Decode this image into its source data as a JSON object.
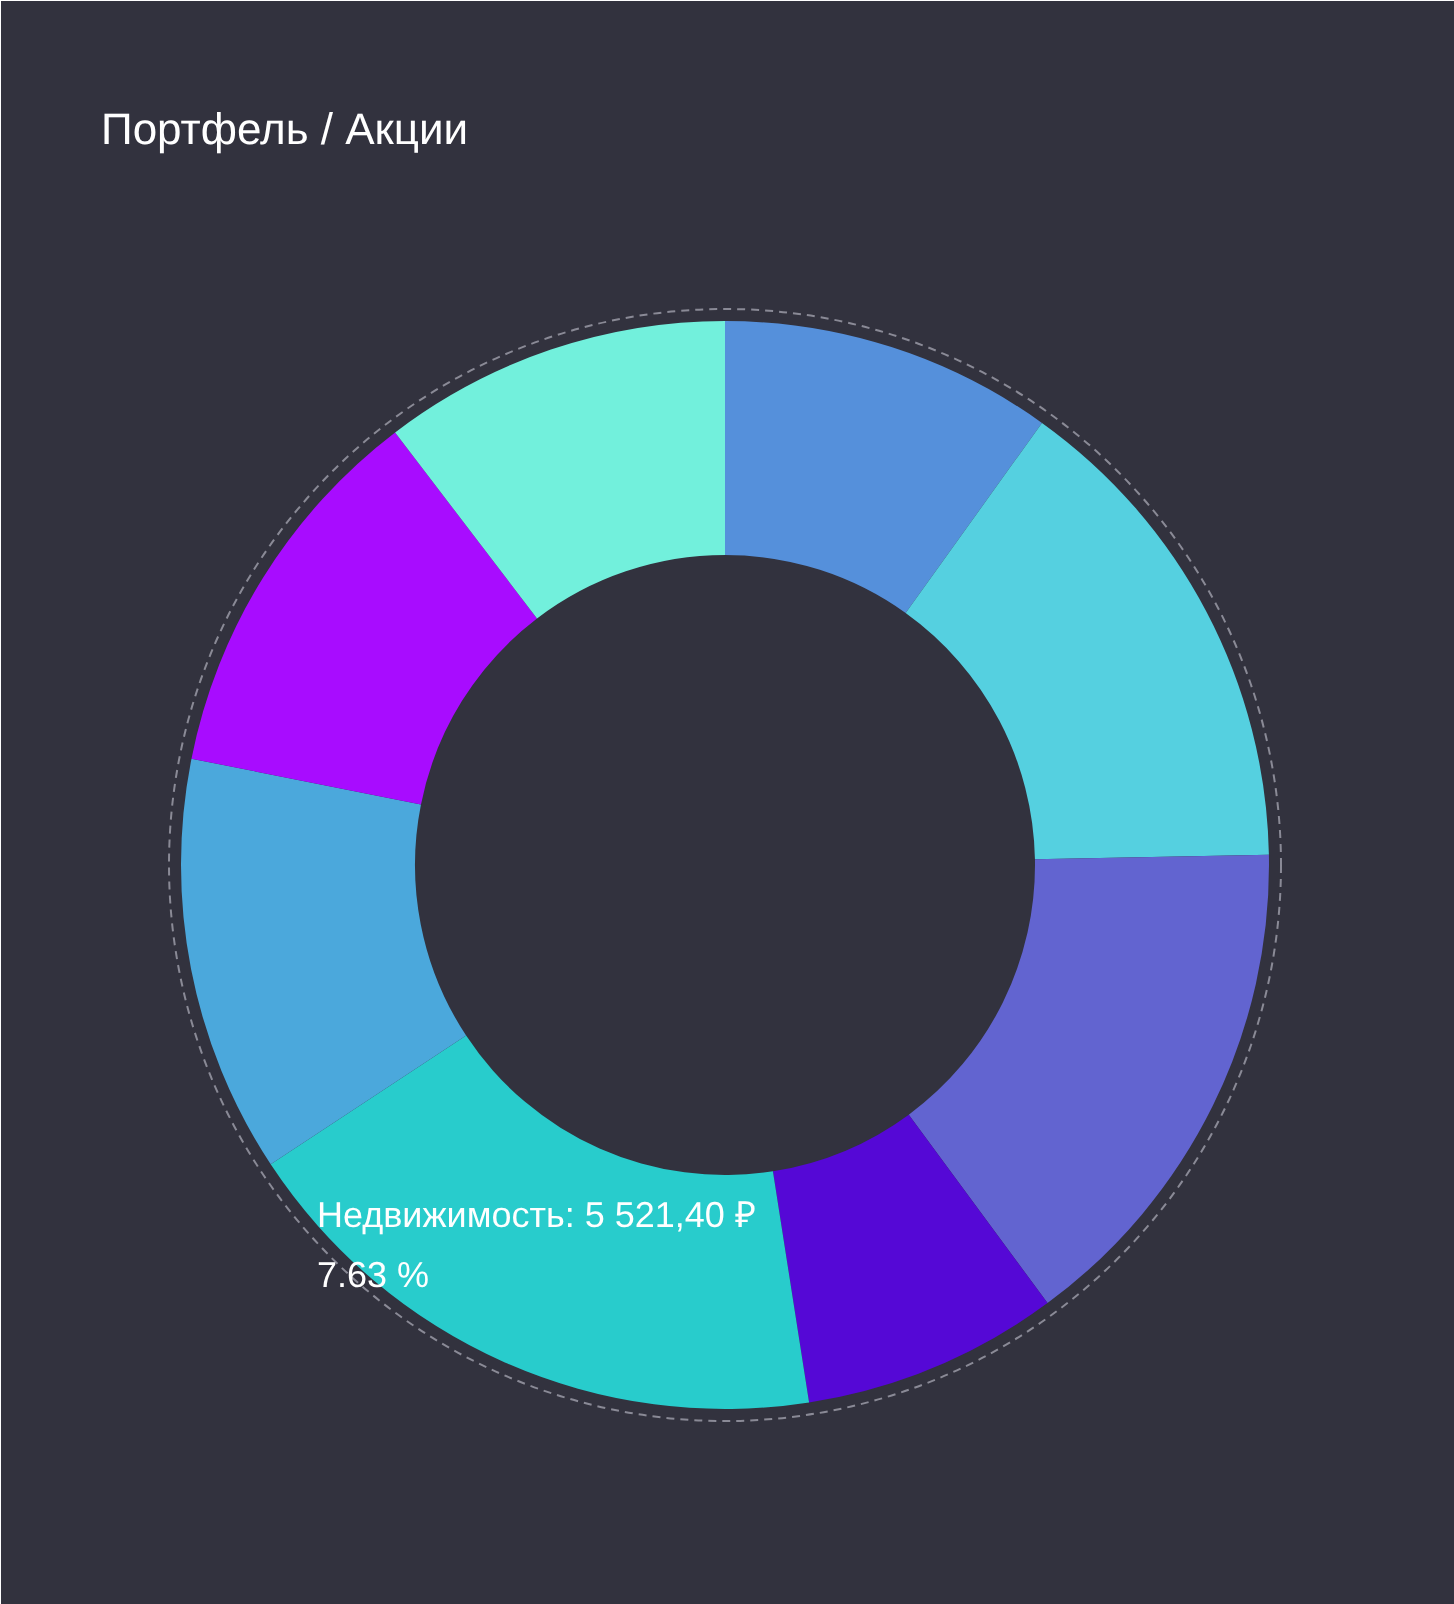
{
  "chart_data": {
    "type": "donut",
    "title": "Портфель / Акции",
    "categories": [
      null,
      null,
      null,
      null,
      null,
      null,
      null,
      null
    ],
    "values": [
      9.9,
      14.8,
      15.2,
      7.63,
      18.2,
      12.4,
      11.5,
      10.37
    ],
    "colors": [
      "#5590db",
      "#55d0e0",
      "#6264d0",
      "#5508d6",
      "#28cccc",
      "#4ba8dc",
      "#a80cff",
      "#72f0dc"
    ],
    "annotations": [
      "Недвижимость: 5 521,40 ₽",
      "7.63 %"
    ]
  }
}
